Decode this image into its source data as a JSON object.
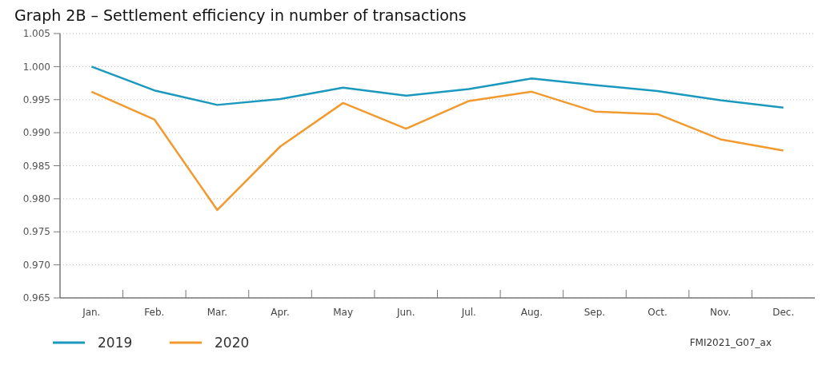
{
  "chart_data": {
    "type": "line",
    "title": "Graph 2B – Settlement efficiency in number of transactions",
    "categories": [
      "Jan.",
      "Feb.",
      "Mar.",
      "Apr.",
      "May",
      "Jun.",
      "Jul.",
      "Aug.",
      "Sep.",
      "Oct.",
      "Nov.",
      "Dec."
    ],
    "series": [
      {
        "name": "2019",
        "color": "#1b98bd",
        "values": [
          1.0,
          0.9964,
          0.9942,
          0.9951,
          0.9968,
          0.9956,
          0.9966,
          0.9982,
          0.9972,
          0.9963,
          0.9949,
          0.9938
        ]
      },
      {
        "name": "2020",
        "color": "#f29a2e",
        "values": [
          0.9962,
          0.992,
          0.9783,
          0.9879,
          0.9945,
          0.9906,
          0.9948,
          0.9962,
          0.9932,
          0.9928,
          0.989,
          0.9873
        ]
      }
    ],
    "ylim": [
      0.965,
      1.005
    ],
    "yticks": [
      {
        "value": 0.965,
        "label": "0.965"
      },
      {
        "value": 0.97,
        "label": "0.970"
      },
      {
        "value": 0.975,
        "label": "0.975"
      },
      {
        "value": 0.98,
        "label": "0.980"
      },
      {
        "value": 0.985,
        "label": "0.985"
      },
      {
        "value": 0.99,
        "label": "0.990"
      },
      {
        "value": 0.995,
        "label": "0.995"
      },
      {
        "value": 1.0,
        "label": "1.000"
      },
      {
        "value": 1.005,
        "label": "1.005"
      }
    ],
    "grid": "y",
    "legend": "bottom left",
    "marker": "none",
    "line_style": "solid",
    "annotations": [
      "FMI2021_G07_ax"
    ]
  }
}
